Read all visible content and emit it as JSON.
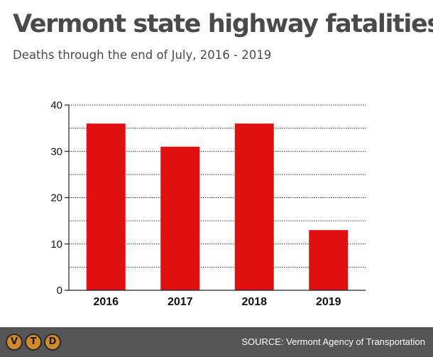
{
  "title": "Vermont state highway fatalities",
  "subtitle": "Deaths through the end of July, 2016 - 2019",
  "chart_data": {
    "type": "bar",
    "categories": [
      "2016",
      "2017",
      "2018",
      "2019"
    ],
    "values": [
      36,
      31,
      36,
      13
    ],
    "ylim": [
      0,
      40
    ],
    "yticks": [
      0,
      10,
      20,
      30,
      40
    ],
    "minor_gridlines": [
      5,
      15,
      25,
      35
    ],
    "grid": true,
    "bar_color": "#e01010"
  },
  "footer": {
    "logo_letters": [
      "V",
      "T",
      "D"
    ],
    "source": "SOURCE: Vermont Agency of Transportation"
  }
}
